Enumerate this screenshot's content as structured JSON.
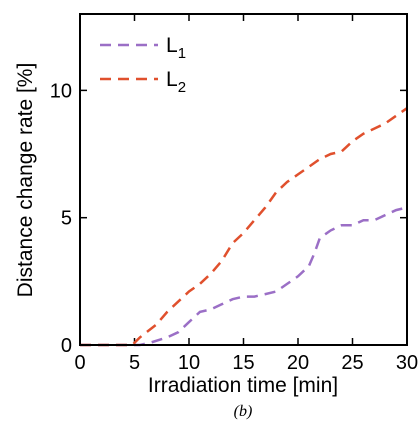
{
  "chart_data": {
    "type": "line",
    "xlabel": "Irradiation time [min]",
    "ylabel": "Distance change rate [%]",
    "caption": "(b)",
    "xlim": [
      0,
      30
    ],
    "ylim": [
      0,
      13
    ],
    "xticks": [
      0,
      5,
      10,
      15,
      20,
      25,
      30
    ],
    "yticks": [
      0,
      5,
      10
    ],
    "grid": false,
    "legend_position": "top-left",
    "series": [
      {
        "name": "L",
        "subscript": "1",
        "color": "#9b6fc6",
        "line_style": "dashed",
        "x": [
          0,
          5.5,
          6.5,
          8,
          9,
          10,
          11,
          12,
          13,
          14,
          15,
          16,
          17,
          18,
          19,
          20,
          21,
          21.5,
          22,
          23,
          24,
          25,
          26,
          27,
          28,
          29,
          30
        ],
        "y": [
          0,
          0,
          0.1,
          0.3,
          0.5,
          0.9,
          1.3,
          1.4,
          1.6,
          1.8,
          1.9,
          1.9,
          2.0,
          2.1,
          2.4,
          2.7,
          3.1,
          3.6,
          4.2,
          4.5,
          4.7,
          4.7,
          4.9,
          4.9,
          5.1,
          5.3,
          5.4
        ]
      },
      {
        "name": "L",
        "subscript": "2",
        "color": "#e0502d",
        "line_style": "dashed",
        "x": [
          0,
          4.8,
          5.5,
          7,
          8,
          9,
          10,
          11,
          12,
          13,
          14,
          15,
          16,
          17,
          18,
          19,
          20,
          21,
          22,
          23,
          24,
          25,
          26,
          27,
          28,
          29,
          30
        ],
        "y": [
          0,
          0,
          0.3,
          0.8,
          1.3,
          1.7,
          2.1,
          2.4,
          2.8,
          3.3,
          4.0,
          4.4,
          4.9,
          5.4,
          6.0,
          6.4,
          6.7,
          7.0,
          7.3,
          7.5,
          7.6,
          8.0,
          8.3,
          8.5,
          8.7,
          9.0,
          9.3
        ]
      }
    ]
  }
}
